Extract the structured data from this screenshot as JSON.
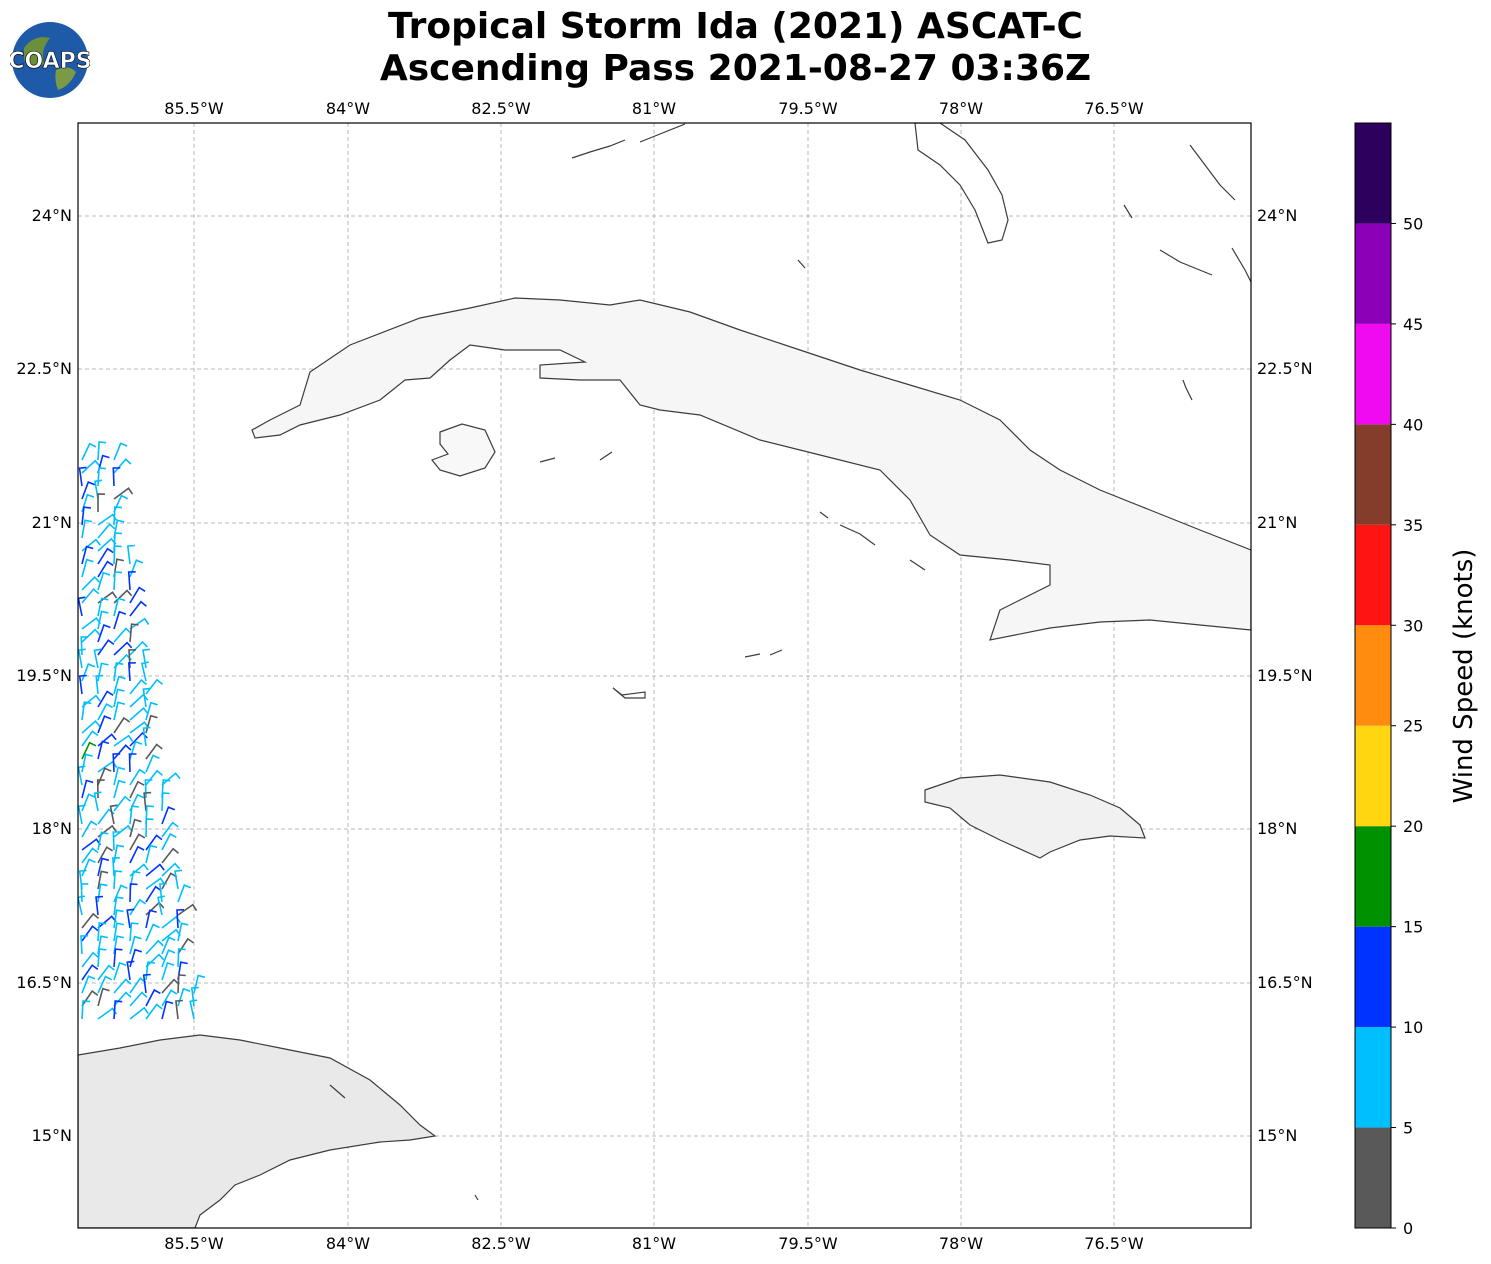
{
  "header": {
    "title_line1": "Tropical Storm Ida (2021) ASCAT-C",
    "title_line2": "Ascending Pass 2021-08-27 03:36Z",
    "logo_text": "COAPS"
  },
  "map": {
    "lon_ticks": [
      "85.5°W",
      "84°W",
      "82.5°W",
      "81°W",
      "79.5°W",
      "78°W",
      "76.5°W"
    ],
    "lat_ticks": [
      "24°N",
      "22.5°N",
      "21°N",
      "19.5°N",
      "18°N",
      "16.5°N",
      "15°N"
    ],
    "places": [
      "Cuba",
      "Jamaica",
      "Honduras",
      "Cayman Islands",
      "Bahamas",
      "Florida Keys"
    ]
  },
  "colorbar": {
    "title": "Wind Speed (knots)",
    "tick_labels": [
      "0",
      "5",
      "10",
      "15",
      "20",
      "25",
      "30",
      "35",
      "40",
      "45",
      "50"
    ],
    "colors": [
      "#595959",
      "#00bfff",
      "#0033ff",
      "#009100",
      "#ffd60f",
      "#ff8c0f",
      "#ff1414",
      "#853d2b",
      "#f00af0",
      "#8c00b8",
      "#2e005e"
    ]
  }
}
